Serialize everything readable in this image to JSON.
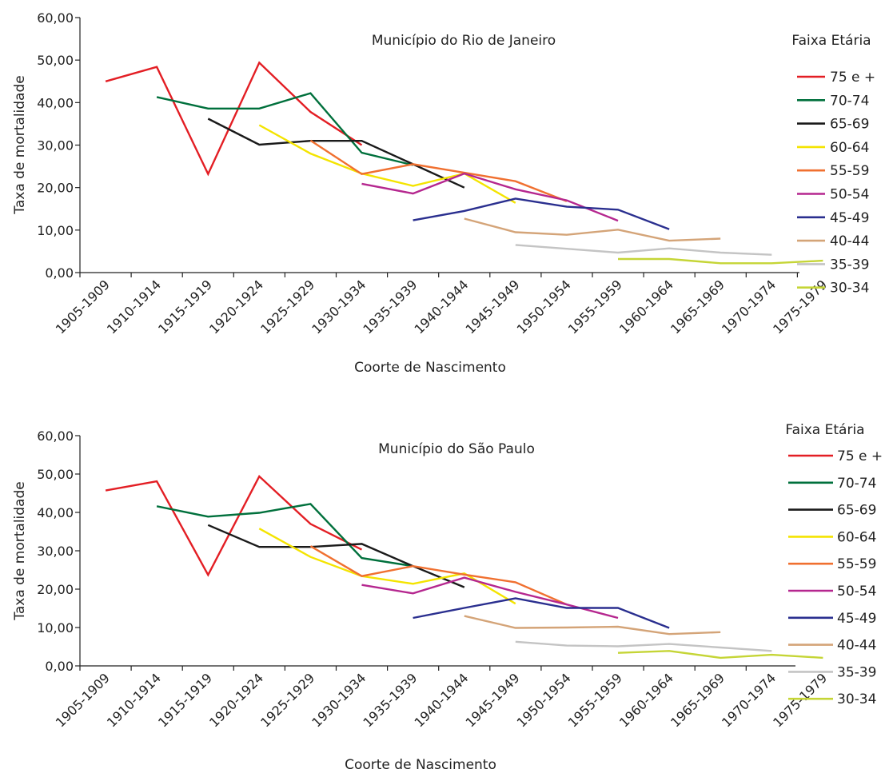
{
  "chart_data": [
    {
      "type": "line",
      "title": "Município do Rio de Janeiro",
      "xlabel": "Coorte de Nascimento",
      "ylabel": "Taxa de mortalidade",
      "ylim": [
        0,
        60
      ],
      "y_ticks": [
        "0,00",
        "10,00",
        "20,00",
        "30,00",
        "40,00",
        "50,00",
        "60,00"
      ],
      "categories": [
        "1905-1909",
        "1910-1914",
        "1915-1919",
        "1920-1924",
        "1925-1929",
        "1930-1934",
        "1935-1939",
        "1940-1944",
        "1945-1949",
        "1950-1954",
        "1955-1959",
        "1960-1964",
        "1965-1969",
        "1970-1974",
        "1975-1979"
      ],
      "legend_title": "Faixa Etária",
      "legend_position": "right",
      "grid": false,
      "series": [
        {
          "name": "75 e +",
          "color": "#e31e24",
          "values": [
            45.0,
            48.4,
            23.2,
            49.4,
            37.8,
            30.0,
            null,
            null,
            null,
            null,
            null,
            null,
            null,
            null,
            null
          ]
        },
        {
          "name": "70-74",
          "color": "#00703c",
          "values": [
            null,
            41.3,
            38.6,
            38.6,
            42.2,
            28.2,
            25.3,
            null,
            null,
            null,
            null,
            null,
            null,
            null,
            null
          ]
        },
        {
          "name": "65-69",
          "color": "#1a1a1a",
          "values": [
            null,
            null,
            36.2,
            30.1,
            31.0,
            31.0,
            25.5,
            20.0,
            null,
            null,
            null,
            null,
            null,
            null,
            null
          ]
        },
        {
          "name": "60-64",
          "color": "#f4e400",
          "values": [
            null,
            null,
            null,
            34.7,
            28.0,
            23.3,
            20.4,
            23.3,
            16.4,
            null,
            null,
            null,
            null,
            null,
            null
          ]
        },
        {
          "name": "55-59",
          "color": "#f07030",
          "values": [
            null,
            null,
            null,
            null,
            31.1,
            23.2,
            25.5,
            23.5,
            21.5,
            16.8,
            null,
            null,
            null,
            null,
            null
          ]
        },
        {
          "name": "50-54",
          "color": "#b5278f",
          "values": [
            null,
            null,
            null,
            null,
            null,
            20.9,
            18.6,
            23.3,
            19.6,
            17.0,
            12.2,
            null,
            null,
            null,
            null
          ]
        },
        {
          "name": "45-49",
          "color": "#2a2f8f",
          "values": [
            null,
            null,
            null,
            null,
            null,
            null,
            12.3,
            14.5,
            17.4,
            15.5,
            14.8,
            10.2,
            null,
            null,
            null
          ]
        },
        {
          "name": "40-44",
          "color": "#d4a478",
          "values": [
            null,
            null,
            null,
            null,
            null,
            null,
            null,
            12.7,
            9.5,
            8.9,
            10.1,
            7.5,
            8.0,
            null,
            null
          ]
        },
        {
          "name": "35-39",
          "color": "#c4c4c4",
          "values": [
            null,
            null,
            null,
            null,
            null,
            null,
            null,
            null,
            6.5,
            5.6,
            4.7,
            5.7,
            4.7,
            4.2,
            null
          ]
        },
        {
          "name": "30-34",
          "color": "#c5d536",
          "values": [
            null,
            null,
            null,
            null,
            null,
            null,
            null,
            null,
            null,
            null,
            3.2,
            3.2,
            2.2,
            2.2,
            2.8
          ]
        }
      ]
    },
    {
      "type": "line",
      "title": "Município do São Paulo",
      "xlabel": "Coorte de Nascimento",
      "ylabel": "Taxa de mortalidade",
      "ylim": [
        0,
        60
      ],
      "y_ticks": [
        "0,00",
        "10,00",
        "20,00",
        "30,00",
        "40,00",
        "50,00",
        "60,00"
      ],
      "categories": [
        "1905-1909",
        "1910-1914",
        "1915-1919",
        "1920-1924",
        "1925-1929",
        "1930-1934",
        "1935-1939",
        "1940-1944",
        "1945-1949",
        "1950-1954",
        "1955-1959",
        "1960-1964",
        "1965-1969",
        "1970-1974",
        "1975-1979"
      ],
      "legend_title": "Faixa Etária",
      "legend_position": "right",
      "grid": false,
      "series": [
        {
          "name": "75 e +",
          "color": "#e31e24",
          "values": [
            45.7,
            48.1,
            23.7,
            49.4,
            37.0,
            30.3,
            null,
            null,
            null,
            null,
            null,
            null,
            null,
            null,
            null
          ]
        },
        {
          "name": "70-74",
          "color": "#00703c",
          "values": [
            null,
            41.6,
            38.9,
            39.9,
            42.2,
            28.1,
            26.0,
            null,
            null,
            null,
            null,
            null,
            null,
            null,
            null
          ]
        },
        {
          "name": "65-69",
          "color": "#1a1a1a",
          "values": [
            null,
            null,
            36.7,
            31.0,
            31.0,
            31.8,
            26.0,
            20.5,
            null,
            null,
            null,
            null,
            null,
            null,
            null
          ]
        },
        {
          "name": "60-64",
          "color": "#f4e400",
          "values": [
            null,
            null,
            null,
            35.8,
            28.4,
            23.4,
            21.4,
            24.1,
            16.2,
            null,
            null,
            null,
            null,
            null,
            null
          ]
        },
        {
          "name": "55-59",
          "color": "#f07030",
          "values": [
            null,
            null,
            null,
            null,
            31.2,
            23.4,
            26.0,
            23.8,
            21.8,
            16.0,
            null,
            null,
            null,
            null,
            null
          ]
        },
        {
          "name": "50-54",
          "color": "#b5278f",
          "values": [
            null,
            null,
            null,
            null,
            null,
            21.1,
            18.9,
            23.0,
            19.3,
            16.0,
            12.5,
            null,
            null,
            null,
            null
          ]
        },
        {
          "name": "45-49",
          "color": "#2a2f8f",
          "values": [
            null,
            null,
            null,
            null,
            null,
            null,
            12.5,
            15.1,
            17.6,
            15.1,
            15.1,
            9.9,
            null,
            null,
            null
          ]
        },
        {
          "name": "40-44",
          "color": "#d4a478",
          "values": [
            null,
            null,
            null,
            null,
            null,
            null,
            null,
            13.0,
            9.9,
            10.0,
            10.2,
            8.3,
            8.8,
            null,
            null
          ]
        },
        {
          "name": "35-39",
          "color": "#c4c4c4",
          "values": [
            null,
            null,
            null,
            null,
            null,
            null,
            null,
            null,
            6.3,
            5.3,
            5.1,
            5.7,
            4.8,
            3.9,
            null
          ]
        },
        {
          "name": "30-34",
          "color": "#c5d536",
          "values": [
            null,
            null,
            null,
            null,
            null,
            null,
            null,
            null,
            null,
            null,
            3.4,
            3.9,
            2.1,
            2.9,
            2.1
          ]
        }
      ]
    }
  ]
}
